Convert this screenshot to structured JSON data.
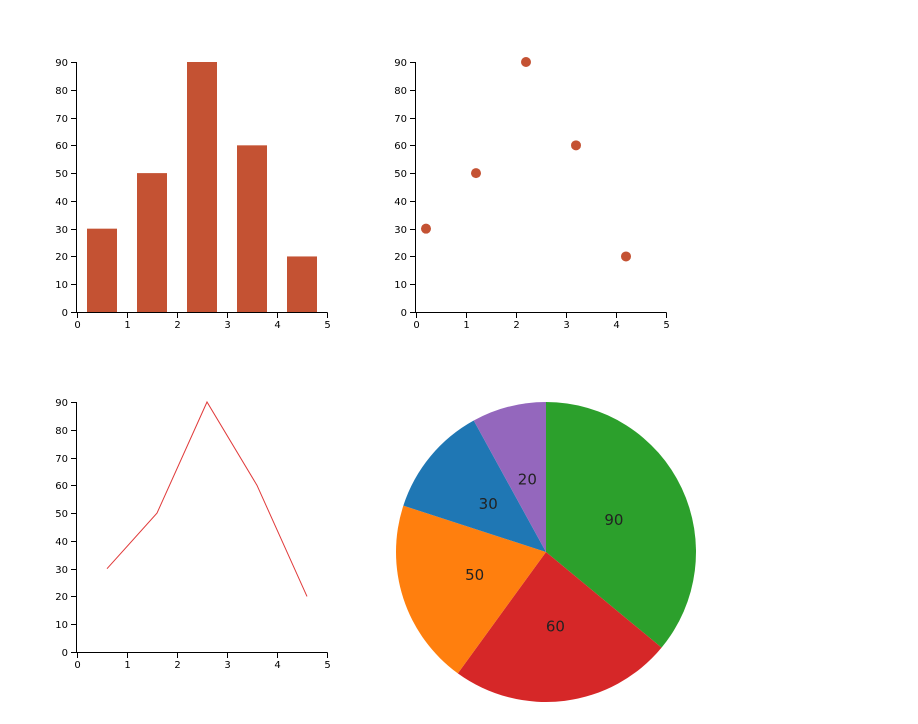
{
  "chart_data": [
    {
      "type": "bar",
      "x": [
        0.5,
        1.5,
        2.5,
        3.5,
        4.5
      ],
      "values": [
        30,
        50,
        90,
        60,
        20
      ],
      "xlim": [
        0,
        5
      ],
      "ylim": [
        0,
        90
      ],
      "x_ticks": [
        "0",
        "1",
        "2",
        "3",
        "4",
        "5"
      ],
      "y_ticks": [
        "0",
        "10",
        "20",
        "30",
        "40",
        "50",
        "60",
        "70",
        "80",
        "90"
      ],
      "color": "#c45233"
    },
    {
      "type": "scatter",
      "x": [
        0.2,
        1.2,
        2.2,
        3.2,
        4.2
      ],
      "values": [
        30,
        50,
        90,
        60,
        20
      ],
      "xlim": [
        0,
        5
      ],
      "ylim": [
        0,
        90
      ],
      "x_ticks": [
        "0",
        "1",
        "2",
        "3",
        "4",
        "5"
      ],
      "y_ticks": [
        "0",
        "10",
        "20",
        "30",
        "40",
        "50",
        "60",
        "70",
        "80",
        "90"
      ],
      "color": "#c45233"
    },
    {
      "type": "line",
      "x": [
        0.6,
        1.6,
        2.6,
        3.6,
        4.6
      ],
      "values": [
        30,
        50,
        90,
        60,
        20
      ],
      "xlim": [
        0,
        5
      ],
      "ylim": [
        0,
        90
      ],
      "x_ticks": [
        "0",
        "1",
        "2",
        "3",
        "4",
        "5"
      ],
      "y_ticks": [
        "0",
        "10",
        "20",
        "30",
        "40",
        "50",
        "60",
        "70",
        "80",
        "90"
      ],
      "color": "#e03a3a"
    },
    {
      "type": "pie",
      "values": [
        90,
        60,
        50,
        30,
        20
      ],
      "labels": [
        "90",
        "60",
        "50",
        "30",
        "20"
      ],
      "colors": [
        "#2ca02c",
        "#d62728",
        "#ff7f0e",
        "#1f77b4",
        "#9467bd"
      ]
    }
  ]
}
